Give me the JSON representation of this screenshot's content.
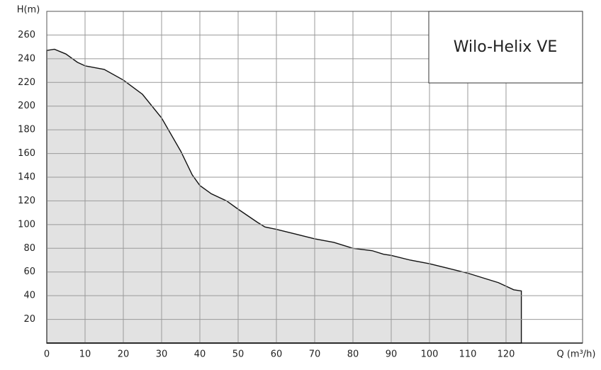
{
  "chart_data": {
    "type": "area",
    "title": "Wilo-Helix VE",
    "y_label": "H(m)",
    "x_label": "Q (m³/h)",
    "x": [
      0,
      2,
      5,
      8,
      10,
      15,
      20,
      25,
      30,
      35,
      38,
      40,
      43,
      47,
      50,
      55,
      57,
      60,
      65,
      70,
      75,
      80,
      85,
      88,
      90,
      95,
      100,
      105,
      110,
      115,
      118,
      120,
      122,
      124
    ],
    "values": [
      247,
      248,
      244,
      237,
      234,
      231,
      222,
      210,
      190,
      162,
      142,
      133,
      126,
      120,
      113,
      102,
      98,
      96,
      92,
      88,
      85,
      80,
      78,
      75,
      74,
      70,
      67,
      63,
      59,
      54,
      51,
      48,
      45,
      44
    ],
    "color": "#e2e2e2",
    "line_color": "#111111",
    "xlim": [
      0,
      140
    ],
    "xticks": [
      0,
      10,
      20,
      30,
      40,
      50,
      60,
      70,
      80,
      90,
      100,
      110,
      120
    ],
    "ylim": [
      0,
      280
    ],
    "yticks": [
      20,
      40,
      60,
      80,
      100,
      120,
      140,
      160,
      180,
      200,
      220,
      240,
      260
    ],
    "grid": true
  }
}
